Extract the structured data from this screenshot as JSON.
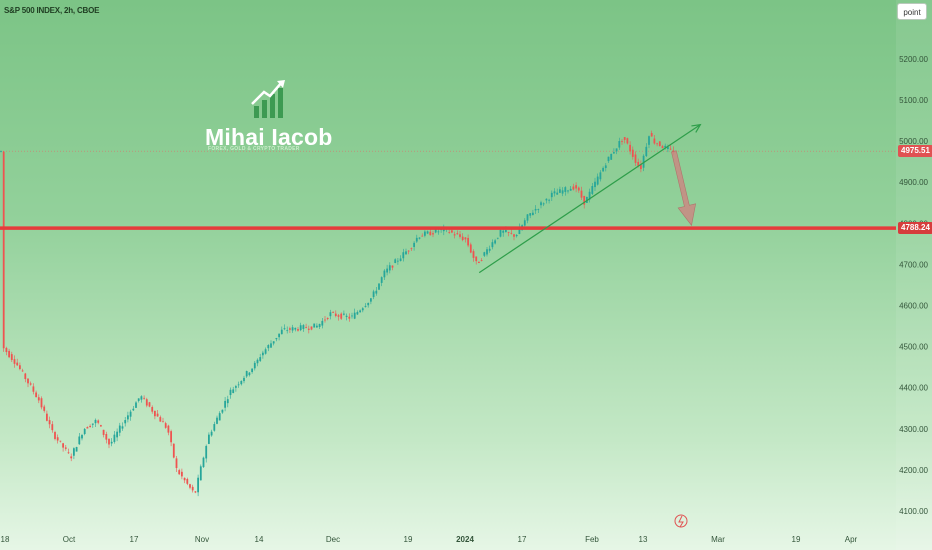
{
  "header": {
    "symbol": "S&P 500 INDEX, 2h, CBOE",
    "mode_button": "point"
  },
  "branding": {
    "name": "Mihai Iacob",
    "tagline": "FOREX, GOLD & CRYPTO TRADER",
    "logo_icon": "rising-bars-arrow-icon"
  },
  "colors": {
    "up_candle": "#26a69a",
    "down_candle": "#ef5350",
    "support_line": "#e63b3b",
    "trendline": "#2e9e4a",
    "forecast_arrow": "#c98a82",
    "current_price_tag": "#e05252",
    "support_tag": "#d63c3c"
  },
  "chart_data": {
    "type": "candlestick",
    "title": "S&P 500 INDEX, 2h, CBOE",
    "y_axis": {
      "ticks": [
        4100,
        4200,
        4300,
        4400,
        4500,
        4600,
        4700,
        4800,
        4900,
        5000,
        5100,
        5200
      ],
      "tick_labels": [
        "4100.00",
        "4200.00",
        "4300.00",
        "4400.00",
        "4500.00",
        "4600.00",
        "4700.00",
        "4800.00",
        "4900.00",
        "5000.00",
        "5100.00",
        "5200.00"
      ],
      "range": [
        4075,
        5330
      ]
    },
    "x_axis": {
      "tick_labels": [
        "18",
        "Oct",
        "17",
        "Nov",
        "14",
        "Dec",
        "19",
        "2024",
        "17",
        "Feb",
        "13",
        "Mar",
        "19",
        "Apr"
      ],
      "bold_labels": [
        "2024"
      ]
    },
    "price_points": [
      [
        "2023-09-18",
        4500
      ],
      [
        "2023-09-21",
        4460
      ],
      [
        "2023-09-26",
        4370
      ],
      [
        "2023-09-29",
        4290
      ],
      [
        "2023-10-03",
        4230
      ],
      [
        "2023-10-06",
        4300
      ],
      [
        "2023-10-09",
        4320
      ],
      [
        "2023-10-12",
        4260
      ],
      [
        "2023-10-16",
        4330
      ],
      [
        "2023-10-19",
        4380
      ],
      [
        "2023-10-25",
        4300
      ],
      [
        "2023-10-27",
        4200
      ],
      [
        "2023-10-31",
        4140
      ],
      [
        "2023-11-03",
        4280
      ],
      [
        "2023-11-08",
        4390
      ],
      [
        "2023-11-14",
        4460
      ],
      [
        "2023-11-15",
        4480
      ],
      [
        "2023-11-20",
        4540
      ],
      [
        "2023-11-28",
        4550
      ],
      [
        "2023-12-01",
        4580
      ],
      [
        "2023-12-06",
        4570
      ],
      [
        "2023-12-11",
        4620
      ],
      [
        "2023-12-14",
        4680
      ],
      [
        "2023-12-20",
        4740
      ],
      [
        "2023-12-22",
        4770
      ],
      [
        "2023-12-28",
        4785
      ],
      [
        "2024-01-02",
        4760
      ],
      [
        "2024-01-05",
        4700
      ],
      [
        "2024-01-10",
        4760
      ],
      [
        "2024-01-12",
        4780
      ],
      [
        "2024-01-16",
        4770
      ],
      [
        "2024-01-19",
        4820
      ],
      [
        "2024-01-24",
        4870
      ],
      [
        "2024-01-29",
        4890
      ],
      [
        "2024-01-31",
        4850
      ],
      [
        "2024-02-05",
        4950
      ],
      [
        "2024-02-09",
        5010
      ],
      [
        "2024-02-13",
        4930
      ],
      [
        "2024-02-15",
        5020
      ],
      [
        "2024-02-16",
        5000
      ],
      [
        "2024-02-20",
        4975
      ]
    ],
    "current_price": {
      "value": 4975.51,
      "label": "4975.51"
    },
    "support_level": {
      "value": 4788.24,
      "label": "4788.24"
    },
    "trendline": {
      "from": [
        "2024-01-05",
        4680
      ],
      "to": [
        "2024-02-26",
        5040
      ]
    },
    "forecast_arrow": {
      "from": [
        "2024-02-20",
        4975
      ],
      "to": [
        "2024-02-24",
        4795
      ]
    }
  }
}
